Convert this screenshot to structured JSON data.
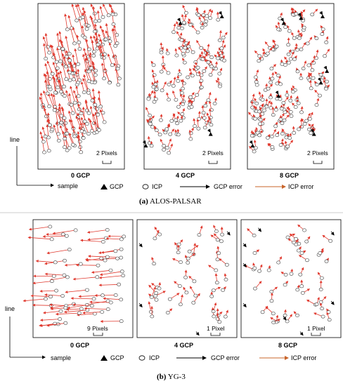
{
  "figure": {
    "a": {
      "caption_letter": "(a)",
      "caption_text": " ALOS-PALSAR",
      "panel_titles": [
        "0 GCP",
        "4 GCP",
        "8 GCP"
      ],
      "scale_labels": [
        "2 Pixels",
        "2 Pixels",
        "2 Pixels"
      ],
      "axis": {
        "y_label": "line",
        "x_label": "sample"
      },
      "legend": {
        "gcp": "GCP",
        "icp": "ICP",
        "gcp_error": "GCP error",
        "icp_error": "ICP error"
      }
    },
    "b": {
      "caption_letter": "(b)",
      "caption_text": " YG-3",
      "panel_titles": [
        "0 GCP",
        "4 GCP",
        "8 GCP"
      ],
      "scale_labels": [
        "9 Pixels",
        "1 Pixel",
        "1 Pixel"
      ],
      "axis": {
        "y_label": "line",
        "x_label": "sample"
      },
      "legend": {
        "gcp": "GCP",
        "icp": "ICP",
        "gcp_error": "GCP error",
        "icp_error": "ICP error"
      }
    }
  },
  "colors": {
    "icp_error": "#e0392e",
    "icp_error_legend": "#c8642a",
    "gcp_error": "#000000"
  }
}
